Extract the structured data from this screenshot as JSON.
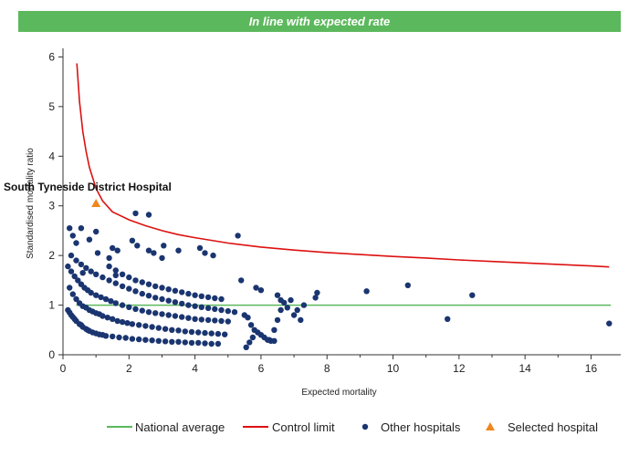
{
  "banner": {
    "text": "In line with expected rate",
    "color": "#5cb85c"
  },
  "chart_data": {
    "type": "scatter",
    "xlabel": "Expected mortality",
    "ylabel": "Standardised mortality ratio",
    "xlim": [
      0,
      16.9
    ],
    "ylim": [
      0,
      6.1
    ],
    "xticks": [
      0,
      2,
      4,
      6,
      8,
      10,
      12,
      14,
      16
    ],
    "yticks": [
      0,
      1,
      2,
      3,
      4,
      5,
      6
    ],
    "grid": false,
    "legend_position": "bottom",
    "national_average": {
      "name": "National average",
      "value": 1,
      "x_range": [
        0.4,
        16.6
      ],
      "color": "#5cb85c"
    },
    "control_limit": {
      "name": "Control limit",
      "color": "#dd1111",
      "x": [
        0.42,
        0.5,
        0.6,
        0.7,
        0.8,
        1.0,
        1.2,
        1.5,
        2.0,
        2.5,
        3.0,
        3.5,
        4.0,
        5.0,
        6.0,
        7.0,
        8.0,
        9.0,
        10.0,
        11.0,
        12.0,
        13.0,
        14.0,
        15.0,
        16.0,
        16.55
      ],
      "y": [
        5.87,
        5.1,
        4.5,
        4.1,
        3.78,
        3.35,
        3.1,
        2.88,
        2.72,
        2.6,
        2.5,
        2.42,
        2.36,
        2.25,
        2.17,
        2.11,
        2.06,
        2.02,
        1.98,
        1.95,
        1.91,
        1.88,
        1.85,
        1.82,
        1.79,
        1.77
      ]
    },
    "series": [
      {
        "name": "Other hospitals",
        "color": "#1a3570",
        "marker": "circle",
        "x": [
          0.15,
          0.2,
          0.25,
          0.3,
          0.35,
          0.4,
          0.5,
          0.55,
          0.6,
          0.7,
          0.75,
          0.8,
          0.9,
          1.0,
          1.1,
          1.2,
          1.3,
          1.5,
          1.7,
          1.9,
          2.1,
          2.3,
          2.5,
          2.7,
          2.9,
          3.1,
          3.3,
          3.5,
          3.7,
          3.9,
          4.1,
          4.3,
          4.5,
          4.7,
          0.2,
          0.3,
          0.4,
          0.5,
          0.6,
          0.7,
          0.8,
          0.9,
          1.0,
          1.1,
          1.2,
          1.35,
          1.5,
          1.65,
          1.8,
          1.95,
          2.1,
          2.3,
          2.5,
          2.7,
          2.9,
          3.1,
          3.3,
          3.5,
          3.7,
          3.9,
          4.1,
          4.3,
          4.5,
          4.7,
          4.9,
          0.15,
          0.25,
          0.35,
          0.45,
          0.55,
          0.65,
          0.75,
          0.85,
          1.0,
          1.15,
          1.3,
          1.45,
          1.6,
          1.8,
          2.0,
          2.2,
          2.4,
          2.6,
          2.8,
          3.0,
          3.2,
          3.4,
          3.6,
          3.8,
          4.0,
          4.2,
          4.4,
          4.6,
          4.8,
          5.0,
          0.25,
          0.4,
          0.55,
          0.7,
          0.85,
          1.0,
          1.2,
          1.4,
          1.6,
          1.8,
          2.0,
          2.2,
          2.4,
          2.6,
          2.8,
          3.0,
          3.2,
          3.4,
          3.6,
          3.8,
          4.0,
          4.2,
          4.4,
          4.6,
          4.8,
          5.0,
          5.2,
          1.4,
          1.6,
          1.8,
          2.0,
          2.2,
          2.4,
          2.6,
          2.8,
          3.0,
          3.2,
          3.4,
          3.6,
          3.8,
          4.0,
          4.2,
          4.4,
          4.6,
          4.8,
          0.2,
          0.3,
          0.4,
          0.55,
          0.8,
          1.0,
          1.05,
          1.5,
          1.65,
          2.1,
          2.25,
          2.6,
          2.75,
          3.0,
          3.05,
          3.5,
          4.15,
          4.3,
          4.55,
          5.3,
          2.2,
          2.6,
          0.6,
          1.4,
          1.6,
          5.4,
          5.5,
          5.6,
          5.7,
          5.8,
          5.9,
          6.0,
          6.1,
          6.2,
          6.3,
          6.4,
          6.5,
          6.6,
          6.7,
          6.8,
          6.9,
          7.0,
          7.1,
          7.2,
          7.3,
          7.65,
          7.7,
          5.55,
          5.65,
          5.75,
          5.85,
          6.0,
          6.25,
          6.4,
          6.5,
          6.6,
          9.2,
          10.45,
          11.65,
          12.4,
          16.55
        ],
        "y": [
          0.9,
          0.85,
          0.8,
          0.76,
          0.72,
          0.68,
          0.62,
          0.6,
          0.56,
          0.52,
          0.5,
          0.48,
          0.45,
          0.43,
          0.41,
          0.4,
          0.38,
          0.37,
          0.35,
          0.34,
          0.32,
          0.31,
          0.3,
          0.29,
          0.28,
          0.27,
          0.26,
          0.26,
          0.25,
          0.24,
          0.24,
          0.23,
          0.22,
          0.22,
          1.35,
          1.22,
          1.12,
          1.04,
          0.98,
          0.95,
          0.9,
          0.87,
          0.84,
          0.82,
          0.78,
          0.75,
          0.72,
          0.68,
          0.66,
          0.64,
          0.62,
          0.6,
          0.58,
          0.56,
          0.54,
          0.52,
          0.5,
          0.49,
          0.47,
          0.46,
          0.45,
          0.44,
          0.43,
          0.42,
          0.41,
          1.78,
          1.68,
          1.58,
          1.5,
          1.42,
          1.35,
          1.3,
          1.25,
          1.2,
          1.16,
          1.12,
          1.08,
          1.04,
          1.0,
          0.96,
          0.92,
          0.89,
          0.86,
          0.84,
          0.82,
          0.8,
          0.78,
          0.76,
          0.74,
          0.72,
          0.71,
          0.7,
          0.69,
          0.68,
          0.67,
          2.0,
          1.9,
          1.82,
          1.75,
          1.68,
          1.62,
          1.56,
          1.5,
          1.44,
          1.38,
          1.33,
          1.28,
          1.23,
          1.19,
          1.15,
          1.12,
          1.09,
          1.06,
          1.03,
          1.0,
          0.98,
          0.96,
          0.94,
          0.92,
          0.9,
          0.88,
          0.86,
          1.78,
          1.7,
          1.62,
          1.56,
          1.5,
          1.46,
          1.42,
          1.38,
          1.35,
          1.32,
          1.29,
          1.26,
          1.23,
          1.2,
          1.18,
          1.16,
          1.14,
          1.12,
          2.55,
          2.4,
          2.25,
          2.55,
          2.32,
          2.48,
          2.05,
          2.15,
          2.1,
          2.3,
          2.2,
          2.1,
          2.05,
          1.95,
          2.2,
          2.1,
          2.15,
          2.05,
          2.0,
          2.4,
          2.85,
          2.82,
          1.65,
          1.95,
          1.6,
          1.5,
          0.8,
          0.75,
          0.6,
          0.5,
          0.45,
          0.4,
          0.35,
          0.3,
          0.28,
          0.5,
          0.7,
          0.9,
          1.05,
          0.95,
          1.1,
          0.8,
          0.9,
          0.7,
          1.0,
          1.15,
          1.25,
          0.15,
          0.25,
          0.35,
          1.35,
          1.3,
          0.3,
          0.28,
          1.2,
          1.1,
          1.28,
          1.4,
          0.72,
          1.2,
          0.63
        ]
      },
      {
        "name": "Selected hospital",
        "color": "#f0861c",
        "marker": "triangle",
        "x": [
          1.0
        ],
        "y": [
          3.05
        ],
        "label": "South Tyneside District Hospital"
      }
    ]
  }
}
